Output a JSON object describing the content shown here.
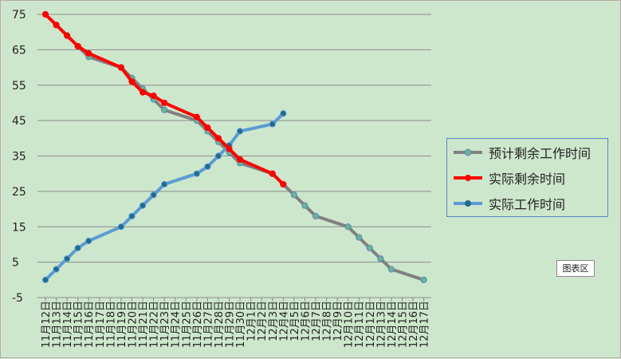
{
  "chart_data": {
    "type": "line",
    "categories": [
      "11月12日",
      "11月13日",
      "11月14日",
      "11月15日",
      "11月16日",
      "11月17日",
      "11月18日",
      "11月19日",
      "11月20日",
      "11月21日",
      "11月22日",
      "11月23日",
      "11月24日",
      "11月25日",
      "11月26日",
      "11月27日",
      "11月28日",
      "11月29日",
      "11月30日",
      "12月1日",
      "12月2日",
      "12月3日",
      "12月4日",
      "12月5日",
      "12月6日",
      "12月7日",
      "12月8日",
      "12月9日",
      "12月10日",
      "12月11日",
      "12月12日",
      "12月13日",
      "12月14日",
      "12月15日",
      "12月16日",
      "12月17日"
    ],
    "series": [
      {
        "name": "预计剩余工作时间",
        "color": "#808080",
        "marker": "#6bb58e",
        "values": [
          75,
          72,
          69,
          66,
          63,
          null,
          null,
          60,
          57,
          54,
          51,
          48,
          null,
          null,
          45,
          42,
          39,
          36,
          33,
          null,
          null,
          30,
          27,
          24,
          21,
          18,
          null,
          null,
          15,
          12,
          9,
          6,
          3,
          null,
          null,
          0
        ]
      },
      {
        "name": "实际剩余时间",
        "color": "#ff0000",
        "marker": "#ff0000",
        "values": [
          75,
          72,
          69,
          66,
          64,
          null,
          null,
          60,
          56,
          53,
          52,
          50,
          null,
          null,
          46,
          43,
          40,
          37,
          34,
          null,
          null,
          30,
          27,
          null,
          null,
          null,
          null,
          null,
          null,
          null,
          null,
          null,
          null,
          null,
          null,
          null
        ]
      },
      {
        "name": "实际工作时间",
        "color": "#5b9bd5",
        "marker": "#1f6b8b",
        "values": [
          0,
          3,
          6,
          9,
          11,
          null,
          null,
          15,
          18,
          21,
          24,
          27,
          null,
          null,
          30,
          32,
          35,
          38,
          42,
          null,
          null,
          44,
          47,
          null,
          null,
          null,
          null,
          null,
          null,
          null,
          null,
          null,
          null,
          null,
          null,
          null
        ]
      }
    ],
    "y_ticks": [
      75,
      65,
      55,
      45,
      35,
      25,
      15,
      5,
      -5
    ],
    "ylim": [
      -5,
      77
    ],
    "grid": true,
    "legend": "right",
    "tooltip_text": "图表区"
  }
}
